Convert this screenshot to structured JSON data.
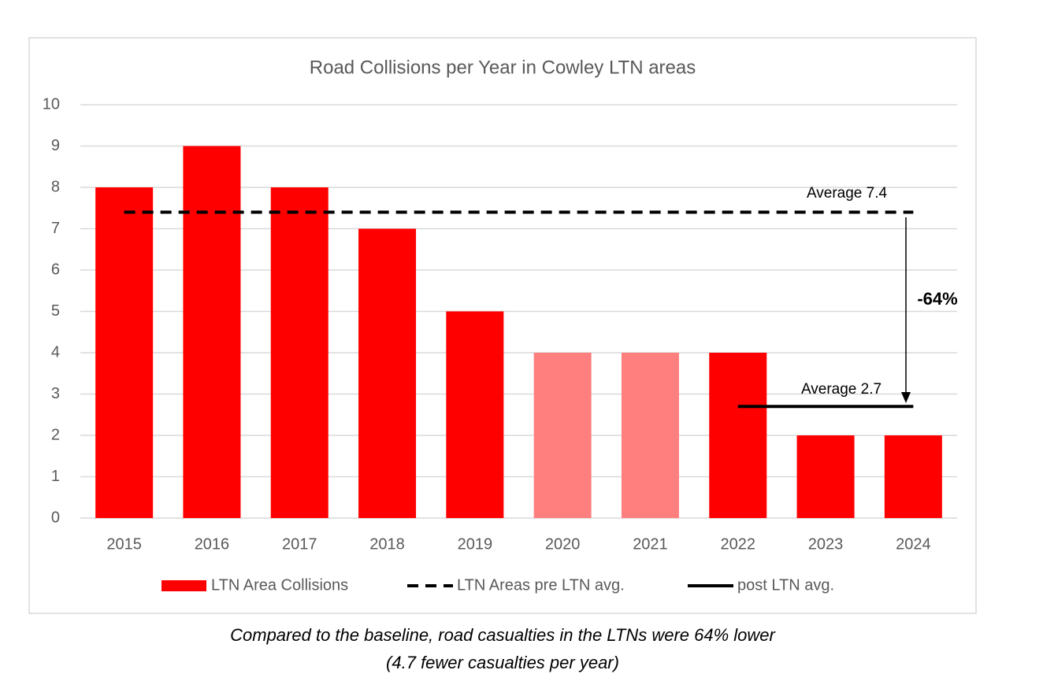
{
  "chart_data": {
    "type": "bar",
    "title": "Road Collisions per Year in Cowley LTN areas",
    "categories": [
      "2015",
      "2016",
      "2017",
      "2018",
      "2019",
      "2020",
      "2021",
      "2022",
      "2023",
      "2024"
    ],
    "series": [
      {
        "name": "LTN Area Collisions",
        "type": "bar",
        "color": "#ff0000",
        "colors": [
          "#ff0000",
          "#ff0000",
          "#ff0000",
          "#ff0000",
          "#ff0000",
          "#ff7f7f",
          "#ff7f7f",
          "#ff0000",
          "#ff0000",
          "#ff0000"
        ],
        "values": [
          8,
          9,
          8,
          7,
          5,
          4,
          4,
          4,
          2,
          2
        ]
      },
      {
        "name": "LTN Areas pre LTN avg.",
        "type": "line",
        "color": "#000000",
        "dashed": true,
        "values": [
          7.4,
          7.4,
          7.4,
          7.4,
          7.4,
          7.4,
          7.4,
          7.4,
          7.4,
          7.4
        ]
      },
      {
        "name": "post LTN avg.",
        "type": "line",
        "color": "#000000",
        "dashed": false,
        "values": [
          null,
          null,
          null,
          null,
          null,
          null,
          null,
          2.7,
          2.7,
          2.7
        ]
      }
    ],
    "annotations": [
      "Average 7.4",
      "Average 2.7",
      "-64%"
    ],
    "ylim": [
      0,
      10
    ],
    "yticks": [
      0,
      1,
      2,
      3,
      4,
      5,
      6,
      7,
      8,
      9,
      10
    ],
    "grid": true,
    "legend": "bottom"
  },
  "caption": {
    "lines": [
      "Compared to the baseline, road casualties in the LTNs were 64% lower",
      "(4.7 fewer casualties per year)"
    ]
  }
}
